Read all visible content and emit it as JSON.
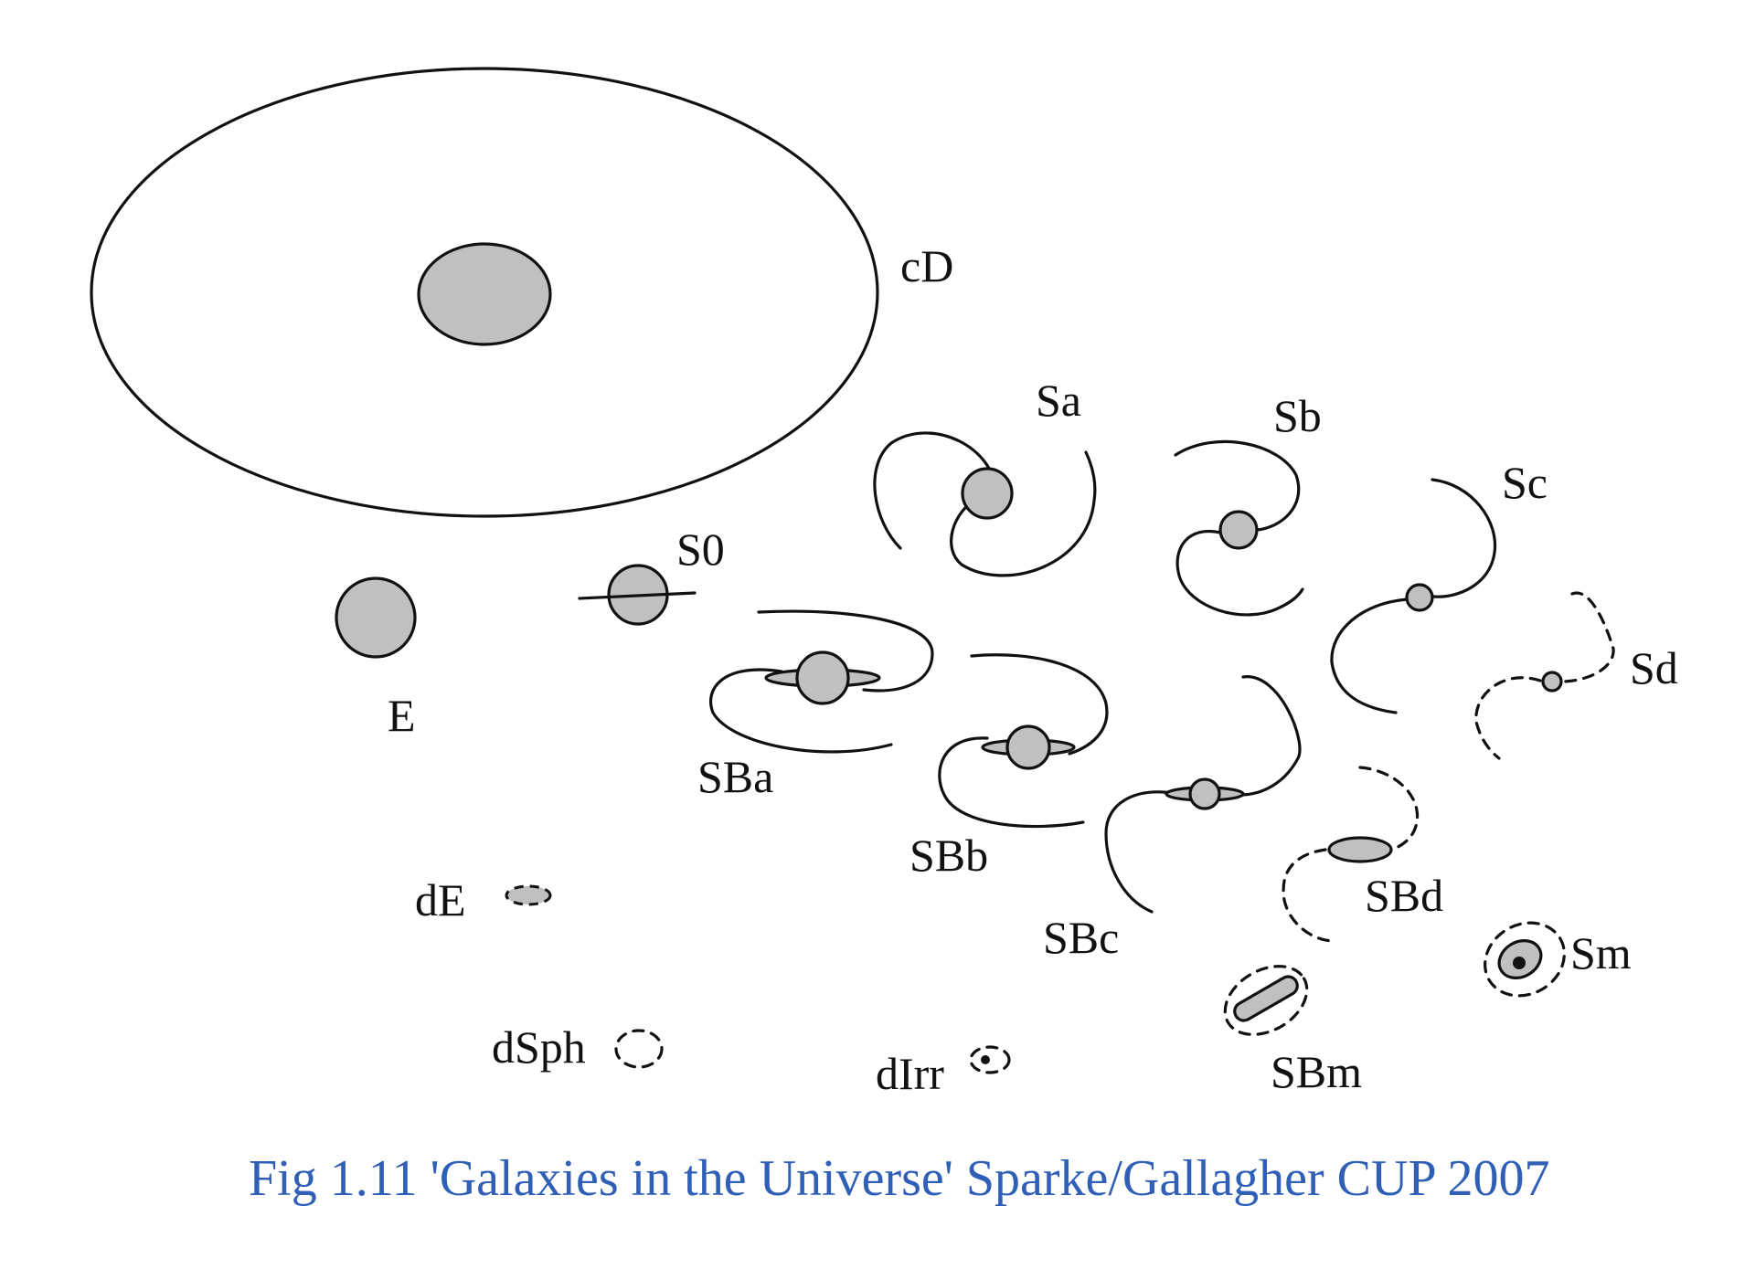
{
  "labels": {
    "cD": "cD",
    "Sa": "Sa",
    "Sb": "Sb",
    "Sc": "Sc",
    "Sd": "Sd",
    "S0": "S0",
    "E": "E",
    "SBa": "SBa",
    "SBb": "SBb",
    "SBc": "SBc",
    "SBd": "SBd",
    "Sm": "Sm",
    "dE": "dE",
    "dSph": "dSph",
    "dIrr": "dIrr",
    "SBm": "SBm"
  },
  "caption": "Fig 1.11 'Galaxies in the Universe' Sparke/Gallagher CUP 2007",
  "colors": {
    "bulge_fill": "#c0c0c0",
    "line": "#111111",
    "caption": "#2f5fb7",
    "background": "#ffffff"
  }
}
